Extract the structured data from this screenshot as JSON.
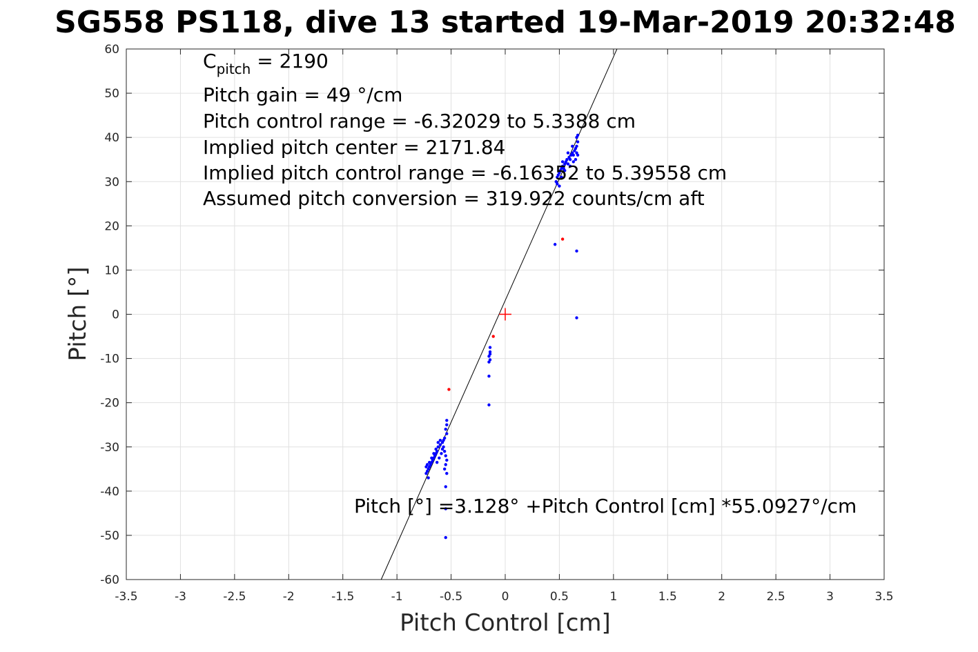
{
  "chart_data": {
    "type": "scatter",
    "title": "SG558 PS118, dive 13 started 19-Mar-2019 20:32:48",
    "xlabel": "Pitch Control [cm]",
    "ylabel": "Pitch [°]",
    "xlim": [
      -3.5,
      3.5
    ],
    "ylim": [
      -60,
      60
    ],
    "xticks": [
      -3.5,
      -3,
      -2.5,
      -2,
      -1.5,
      -1,
      -0.5,
      0,
      0.5,
      1,
      1.5,
      2,
      2.5,
      3,
      3.5
    ],
    "xtick_labels": [
      "-3.5",
      "-3",
      "-2.5",
      "-2",
      "-1.5",
      "-1",
      "-0.5",
      "0",
      "0.5",
      "1",
      "1.5",
      "2",
      "2.5",
      "3",
      "3.5"
    ],
    "yticks": [
      -60,
      -50,
      -40,
      -30,
      -20,
      -10,
      0,
      10,
      20,
      30,
      40,
      50,
      60
    ],
    "ytick_labels": [
      "-60",
      "-50",
      "-40",
      "-30",
      "-20",
      "-10",
      "0",
      "10",
      "20",
      "30",
      "40",
      "50",
      "60"
    ],
    "grid": true,
    "legend": "none",
    "colors": {
      "good_points": "#0000ff",
      "bad_points": "#ff0000",
      "fit_line": "#000000",
      "center_marker": "#ff0000"
    },
    "annotations": {
      "cpitch_main": "C",
      "cpitch_sub": "pitch",
      "cpitch_value": " = 2190",
      "pitch_gain": "Pitch gain = 49 °/cm",
      "control_range": "Pitch control range = -6.32029 to 5.3388 cm",
      "implied_center": "Implied pitch center = 2171.84",
      "implied_range": "Implied pitch control range = -6.16352 to 5.39558 cm",
      "assumed_conversion": "Assumed pitch conversion = 319.922 counts/cm aft",
      "fit_equation": "Pitch [°] =3.128° +Pitch Control [cm] *55.0927°/cm"
    },
    "fit_line": {
      "intercept": 3.128,
      "slope": 55.0927
    },
    "center_marker": {
      "x": 0,
      "y": 0
    },
    "series": [
      {
        "color": "#0000ff",
        "points": [
          [
            0.47,
            30
          ],
          [
            0.48,
            31
          ],
          [
            0.49,
            31.5
          ],
          [
            0.5,
            32
          ],
          [
            0.51,
            32.5
          ],
          [
            0.52,
            33
          ],
          [
            0.53,
            33.5
          ],
          [
            0.54,
            33
          ],
          [
            0.55,
            34
          ],
          [
            0.56,
            34.5
          ],
          [
            0.57,
            35
          ],
          [
            0.58,
            34
          ],
          [
            0.59,
            35.5
          ],
          [
            0.6,
            35
          ],
          [
            0.61,
            36
          ],
          [
            0.62,
            36.5
          ],
          [
            0.63,
            36
          ],
          [
            0.64,
            37
          ],
          [
            0.65,
            37.5
          ],
          [
            0.66,
            38
          ],
          [
            0.67,
            39
          ],
          [
            0.66,
            40
          ],
          [
            0.67,
            40.5
          ],
          [
            0.5,
            29
          ],
          [
            0.48,
            29.5
          ],
          [
            0.52,
            31
          ],
          [
            0.55,
            32.5
          ],
          [
            0.6,
            33.5
          ],
          [
            0.63,
            34.5
          ],
          [
            0.65,
            35
          ],
          [
            0.67,
            36
          ],
          [
            0.62,
            38
          ],
          [
            0.58,
            36.5
          ],
          [
            0.53,
            34.5
          ],
          [
            0.66,
            36.5
          ],
          [
            0.46,
            15.8
          ],
          [
            0.66,
            14.3
          ],
          [
            0.66,
            -0.8
          ],
          [
            -0.14,
            -7.5
          ],
          [
            -0.14,
            -8.5
          ],
          [
            -0.15,
            -9.5
          ],
          [
            -0.14,
            -10.3
          ],
          [
            -0.15,
            -10.8
          ],
          [
            -0.14,
            -9
          ],
          [
            -0.15,
            -14
          ],
          [
            -0.15,
            -20.5
          ],
          [
            -0.54,
            -24
          ],
          [
            -0.54,
            -25
          ],
          [
            -0.55,
            -26
          ],
          [
            -0.54,
            -27
          ],
          [
            -0.56,
            -28
          ],
          [
            -0.57,
            -28.5
          ],
          [
            -0.58,
            -29
          ],
          [
            -0.6,
            -29.5
          ],
          [
            -0.62,
            -30
          ],
          [
            -0.63,
            -31
          ],
          [
            -0.64,
            -31.5
          ],
          [
            -0.65,
            -32
          ],
          [
            -0.66,
            -32.5
          ],
          [
            -0.67,
            -33
          ],
          [
            -0.68,
            -33.5
          ],
          [
            -0.69,
            -34
          ],
          [
            -0.7,
            -34.5
          ],
          [
            -0.71,
            -35
          ],
          [
            -0.72,
            -35.5
          ],
          [
            -0.73,
            -36
          ],
          [
            -0.72,
            -34
          ],
          [
            -0.7,
            -33.5
          ],
          [
            -0.68,
            -32.5
          ],
          [
            -0.66,
            -31.5
          ],
          [
            -0.64,
            -30.5
          ],
          [
            -0.62,
            -29
          ],
          [
            -0.6,
            -28.5
          ],
          [
            -0.58,
            -30.5
          ],
          [
            -0.56,
            -31
          ],
          [
            -0.55,
            -32
          ],
          [
            -0.54,
            -33
          ],
          [
            -0.55,
            -34
          ],
          [
            -0.56,
            -35
          ],
          [
            -0.57,
            -30
          ],
          [
            -0.59,
            -31.5
          ],
          [
            -0.61,
            -32.5
          ],
          [
            -0.63,
            -33.5
          ],
          [
            -0.71,
            -37
          ],
          [
            -0.73,
            -34.5
          ],
          [
            -0.54,
            -36
          ],
          [
            -0.55,
            -39
          ],
          [
            -0.55,
            -44
          ],
          [
            -0.55,
            -50.5
          ]
        ]
      },
      {
        "color": "#ff0000",
        "points": [
          [
            0.53,
            17
          ],
          [
            -0.52,
            -17
          ],
          [
            -0.11,
            -5
          ]
        ]
      }
    ]
  }
}
